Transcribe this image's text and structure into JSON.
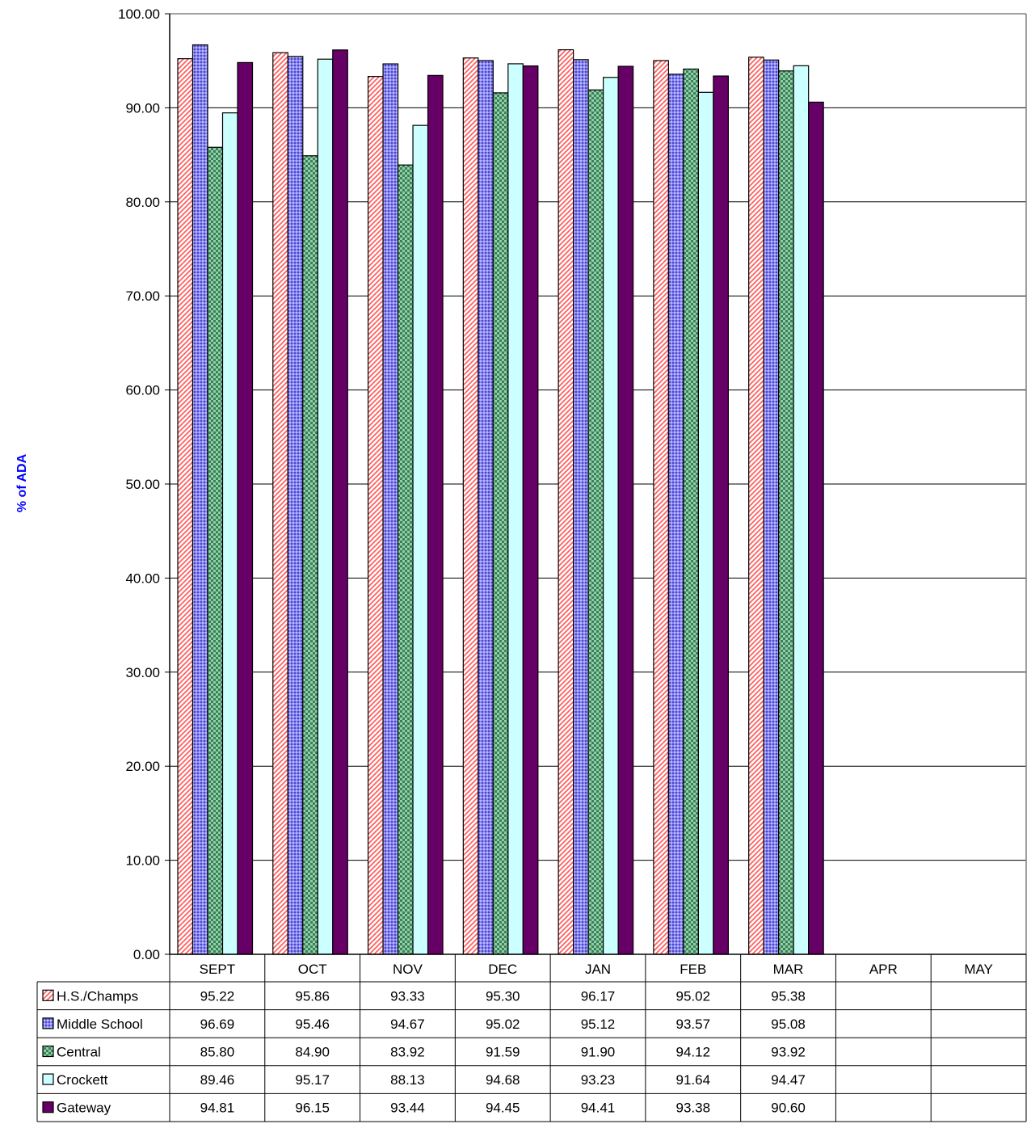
{
  "chart_data": {
    "type": "bar",
    "ylabel": "% of ADA",
    "ylim": [
      0,
      100
    ],
    "ytick_step": 10,
    "ytick_labels": [
      "0.00",
      "10.00",
      "20.00",
      "30.00",
      "40.00",
      "50.00",
      "60.00",
      "70.00",
      "80.00",
      "90.00",
      "100.00"
    ],
    "grid": true,
    "legend": "data-table-left",
    "categories": [
      "SEPT",
      "OCT",
      "NOV",
      "DEC",
      "JAN",
      "FEB",
      "MAR",
      "APR",
      "MAY"
    ],
    "series": [
      {
        "name": "H.S./Champs",
        "pattern": "diagonal-hatch",
        "color": "#ff8080",
        "values": [
          95.22,
          95.86,
          93.33,
          95.3,
          96.17,
          95.02,
          95.38,
          null,
          null
        ],
        "labels": [
          "95.22",
          "95.86",
          "93.33",
          "95.30",
          "96.17",
          "95.02",
          "95.38",
          "",
          ""
        ]
      },
      {
        "name": "Middle School",
        "pattern": "dots",
        "color": "#7a78e8",
        "values": [
          96.69,
          95.46,
          94.67,
          95.02,
          95.12,
          93.57,
          95.08,
          null,
          null
        ],
        "labels": [
          "96.69",
          "95.46",
          "94.67",
          "95.02",
          "95.12",
          "93.57",
          "95.08",
          "",
          ""
        ]
      },
      {
        "name": "Central",
        "pattern": "checker",
        "color": "#4f9a6e",
        "values": [
          85.8,
          84.9,
          83.92,
          91.59,
          91.9,
          94.12,
          93.92,
          null,
          null
        ],
        "labels": [
          "85.80",
          "84.90",
          "83.92",
          "91.59",
          "91.90",
          "94.12",
          "93.92",
          "",
          ""
        ]
      },
      {
        "name": "Crockett",
        "pattern": "solid",
        "color": "#ccffff",
        "values": [
          89.46,
          95.17,
          88.13,
          94.68,
          93.23,
          91.64,
          94.47,
          null,
          null
        ],
        "labels": [
          "89.46",
          "95.17",
          "88.13",
          "94.68",
          "93.23",
          "91.64",
          "94.47",
          "",
          ""
        ]
      },
      {
        "name": "Gateway",
        "pattern": "solid",
        "color": "#660066",
        "values": [
          94.81,
          96.15,
          93.44,
          94.45,
          94.41,
          93.38,
          90.6,
          null,
          null
        ],
        "labels": [
          "94.81",
          "96.15",
          "93.44",
          "94.45",
          "94.41",
          "93.38",
          "90.60",
          "",
          ""
        ]
      }
    ],
    "colors": {
      "ylabel": "#0000ff",
      "axis": "#000000",
      "grid": "#000000",
      "frame": "#808080"
    }
  }
}
